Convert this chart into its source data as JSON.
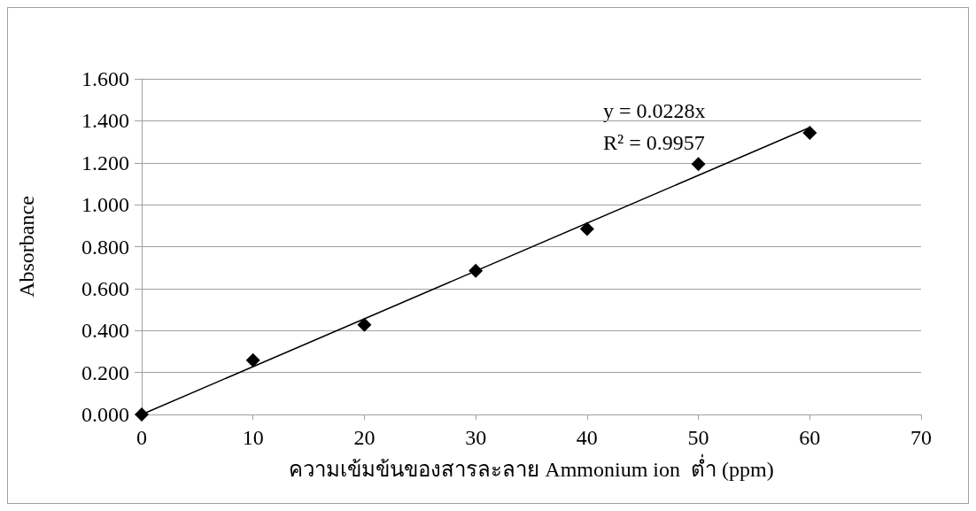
{
  "chart_data": {
    "type": "scatter",
    "xlabel": "ความเข้มข้นของสารละลาย Ammonium ion  ต่ำ (ppm)",
    "ylabel": "Absorbance",
    "series": [
      {
        "color": "#000000",
        "marker": "diamond",
        "x": [
          0,
          10,
          20,
          30,
          40,
          50,
          60
        ],
        "values": [
          0,
          0.259,
          0.427,
          0.685,
          0.884,
          1.194,
          1.343
        ]
      },
      {
        "type": "line",
        "color": "#000000",
        "marker": "none",
        "x": [
          0,
          60
        ],
        "values": [
          0,
          1.368
        ]
      }
    ],
    "annotations": [
      "y = 0.0228x",
      "R² = 0.9957"
    ],
    "xlim": [
      0,
      70
    ],
    "xticks": [
      0,
      10,
      20,
      30,
      40,
      50,
      60,
      70
    ],
    "ylim": [
      0,
      1.6
    ],
    "yticks": [
      {
        "value": 0,
        "label": "0.000"
      },
      {
        "value": 0.2,
        "label": "0.200"
      },
      {
        "value": 0.4,
        "label": "0.400"
      },
      {
        "value": 0.6,
        "label": "0.600"
      },
      {
        "value": 0.8,
        "label": "0.800"
      },
      {
        "value": 1.0,
        "label": "1.000"
      },
      {
        "value": 1.2,
        "label": "1.200"
      },
      {
        "value": 1.4,
        "label": "1.400"
      },
      {
        "value": 1.6,
        "label": "1.600"
      }
    ],
    "grid": "y"
  }
}
